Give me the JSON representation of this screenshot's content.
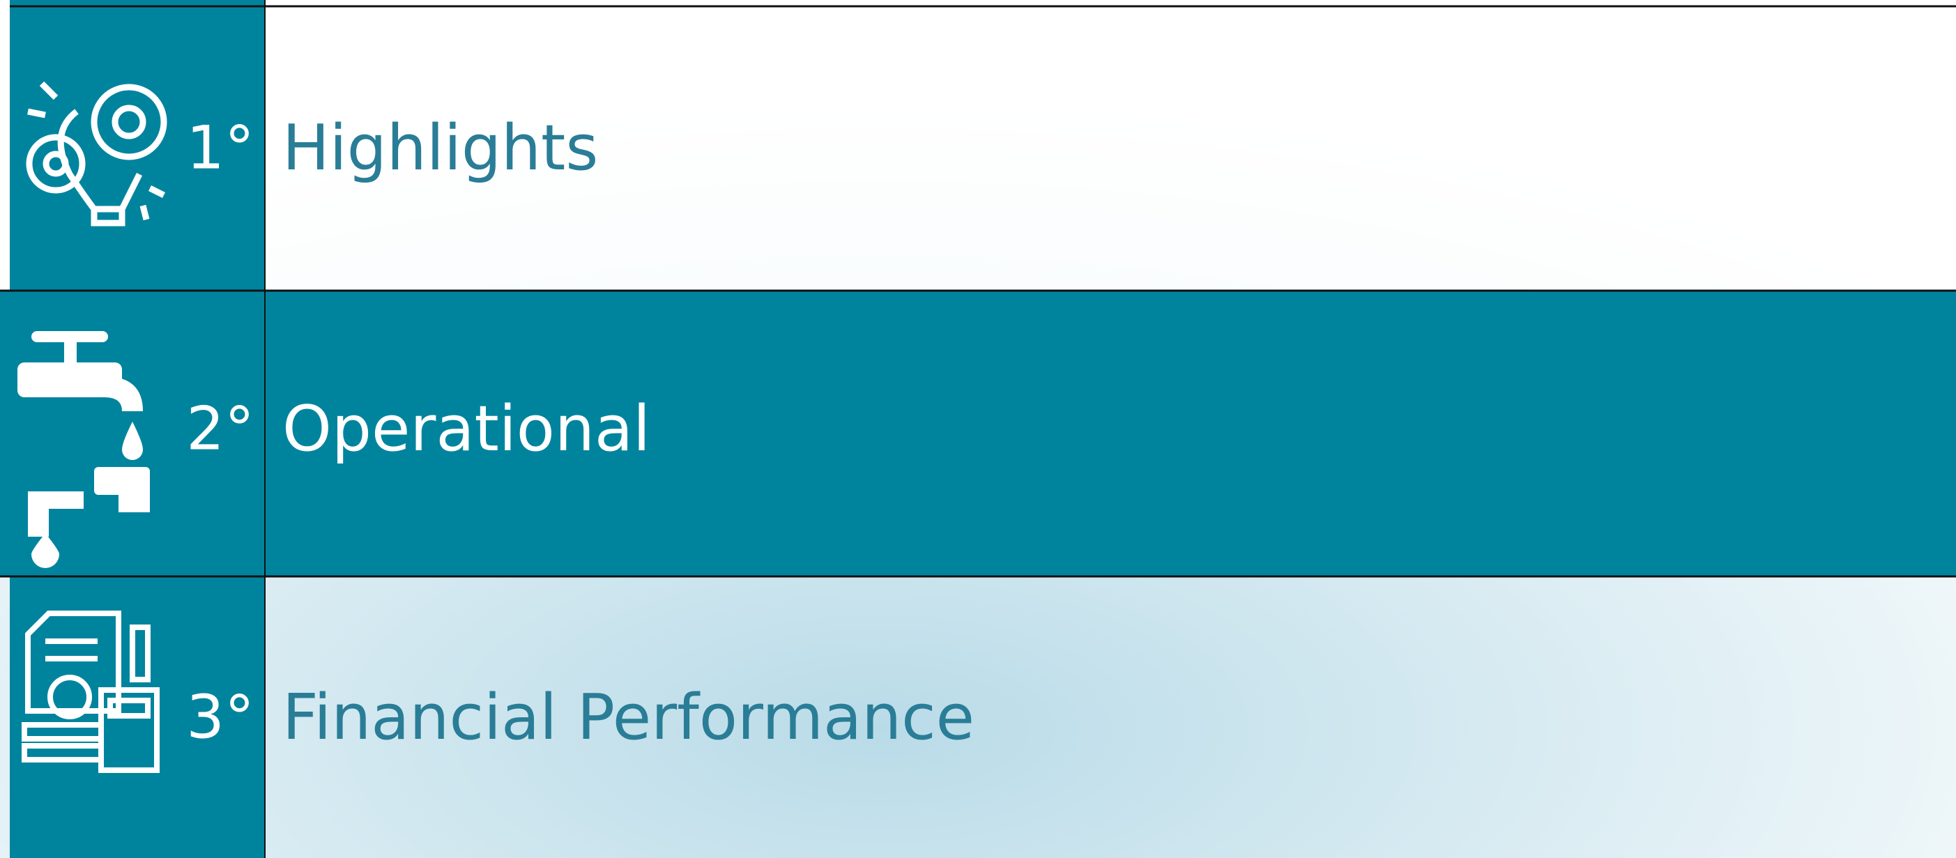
{
  "menu": {
    "items": [
      {
        "number": "1°",
        "label": "Highlights"
      },
      {
        "number": "2°",
        "label": "Operational"
      },
      {
        "number": "3°",
        "label": "Financial Performance"
      }
    ]
  }
}
